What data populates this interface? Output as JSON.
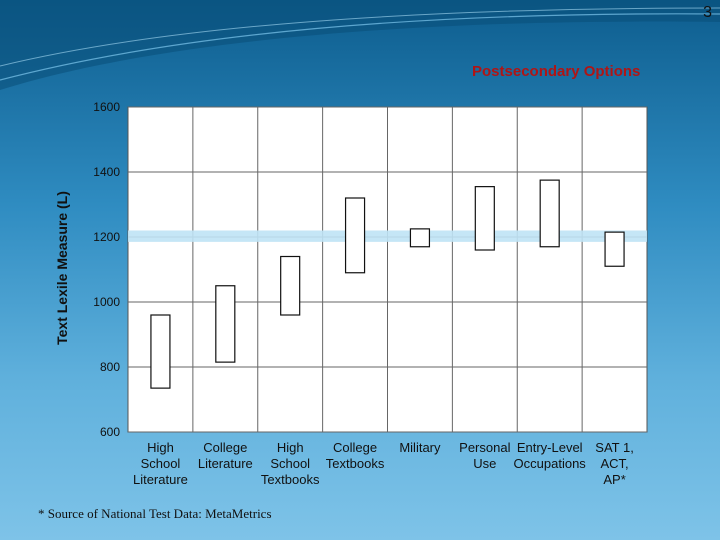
{
  "page_number": "3",
  "subtitle": "Postsecondary Options",
  "source_note": "* Source of National Test Data: MetaMetrics",
  "colors": {
    "background": "#2f8cc1",
    "plot": "#ffffff",
    "bar": "#ffffff",
    "band": "#bfe3f5",
    "subtitle": "#b01515"
  },
  "chart_data": {
    "type": "bar",
    "subtype": "floating-range",
    "title": "",
    "xlabel": "",
    "ylabel": "Text Lexile Measure (L)",
    "ylim": [
      600,
      1600
    ],
    "yticks": [
      600,
      800,
      1000,
      1200,
      1400,
      1600
    ],
    "ytick_labels": [
      "600",
      "800",
      "1000",
      "1200",
      "1400",
      "1600"
    ],
    "grid": true,
    "reference_band": {
      "low": 1185,
      "high": 1220
    },
    "categories": [
      {
        "lines": [
          "High",
          "School",
          "Literature"
        ],
        "low": 735,
        "high": 960
      },
      {
        "lines": [
          "College",
          "Literature"
        ],
        "low": 815,
        "high": 1050
      },
      {
        "lines": [
          "High",
          "School",
          "Textbooks"
        ],
        "low": 960,
        "high": 1140
      },
      {
        "lines": [
          "College",
          "Textbooks"
        ],
        "low": 1090,
        "high": 1320
      },
      {
        "lines": [
          "Military"
        ],
        "low": 1170,
        "high": 1225
      },
      {
        "lines": [
          "Personal",
          "Use"
        ],
        "low": 1160,
        "high": 1355
      },
      {
        "lines": [
          "Entry-Level",
          "Occupations"
        ],
        "low": 1170,
        "high": 1375
      },
      {
        "lines": [
          "SAT 1,",
          "ACT,",
          "AP*"
        ],
        "low": 1110,
        "high": 1215
      }
    ]
  }
}
